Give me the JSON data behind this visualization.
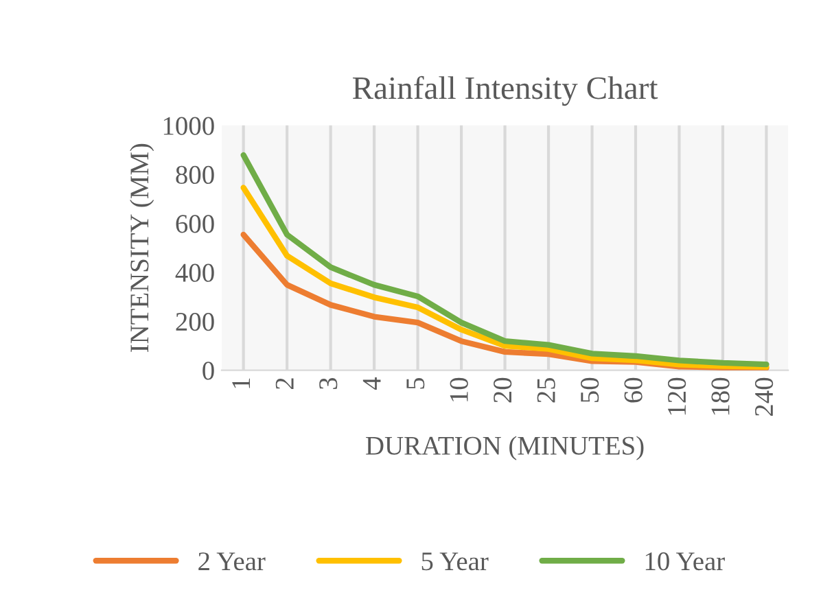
{
  "chart_data": {
    "type": "line",
    "title": "Rainfall Intensity Chart",
    "xlabel": "DURATION (MINUTES)",
    "ylabel": "INTENSITY (MM)",
    "categories": [
      "1",
      "2",
      "3",
      "4",
      "5",
      "10",
      "20",
      "25",
      "50",
      "60",
      "120",
      "180",
      "240"
    ],
    "series": [
      {
        "name": "2 Year",
        "color": "#ed7d31",
        "values": [
          554,
          349,
          267,
          219,
          195,
          119,
          75,
          66,
          37,
          34,
          15,
          11,
          9
        ]
      },
      {
        "name": "5 Year",
        "color": "#ffc000",
        "values": [
          746,
          468,
          355,
          298,
          257,
          166,
          100,
          87,
          49,
          41,
          23,
          17,
          14
        ]
      },
      {
        "name": "10 Year",
        "color": "#70ad47",
        "values": [
          879,
          554,
          421,
          349,
          302,
          195,
          119,
          104,
          68,
          58,
          40,
          30,
          24
        ]
      }
    ],
    "ylim": [
      0,
      1000
    ],
    "yticks": [
      0,
      200,
      400,
      600,
      800,
      1000
    ],
    "grid": "x",
    "legend": "bottom",
    "marker": "none",
    "line_style": "solid"
  }
}
